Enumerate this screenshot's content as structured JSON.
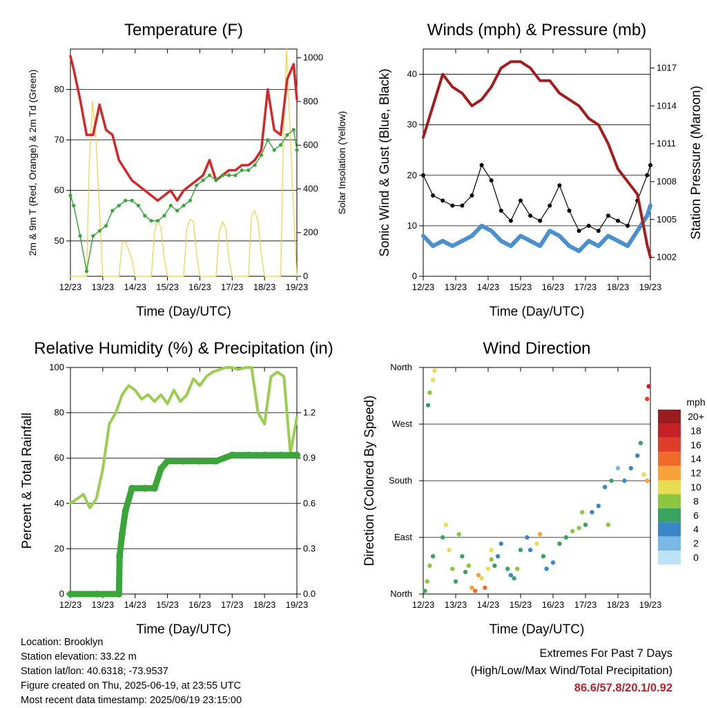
{
  "x_ticks": [
    "12/23",
    "13/23",
    "14/23",
    "15/23",
    "16/23",
    "17/23",
    "18/23",
    "19/23"
  ],
  "colors": {
    "temp_red": "#d62728",
    "temp_orange": "#f39c12",
    "dewpoint_green": "#3aa63a",
    "solar_yellow": "#f2d13a",
    "wind_blue": "#4a90cf",
    "gust_black": "#000000",
    "pressure_maroon": "#a61c1c",
    "rh_green": "#9acd50",
    "precip_green": "#3aa63a"
  },
  "chart_data": [
    {
      "type": "line",
      "title": "Temperature (F)",
      "xlabel": "Time (Day/UTC)",
      "ylabel": "2m & 9m T (Red, Orange) & 2m Td (Green)",
      "y2label": "Solar Insolation (Yellow)",
      "ylim": [
        43,
        88
      ],
      "yticks": [
        50,
        60,
        70,
        80
      ],
      "y2lim": [
        0,
        1040
      ],
      "y2ticks": [
        0,
        200,
        400,
        600,
        800,
        1000
      ],
      "grid": true,
      "series": [
        {
          "role": "temperature",
          "color": "#d62728",
          "x": [
            0,
            0.1,
            0.3,
            0.5,
            0.7,
            0.9,
            1.1,
            1.3,
            1.5,
            1.7,
            1.9,
            2.1,
            2.3,
            2.5,
            2.7,
            2.9,
            3.1,
            3.3,
            3.5,
            3.7,
            3.9,
            4.1,
            4.3,
            4.5,
            4.7,
            4.9,
            5.1,
            5.3,
            5.5,
            5.7,
            5.9,
            6.1,
            6.3,
            6.5,
            6.7,
            6.9,
            7.0
          ],
          "y": [
            86.6,
            84,
            78,
            71,
            71,
            77,
            72,
            71,
            66,
            64,
            62,
            61,
            60,
            59,
            58,
            59,
            60,
            58,
            60,
            61,
            62,
            63,
            66,
            62,
            63,
            64,
            64,
            65,
            65,
            66,
            68,
            80,
            72,
            71,
            82,
            85,
            78
          ]
        },
        {
          "role": "dewpoint",
          "color": "#3aa63a",
          "x": [
            0,
            0.1,
            0.3,
            0.5,
            0.7,
            0.9,
            1.1,
            1.3,
            1.5,
            1.7,
            1.9,
            2.1,
            2.3,
            2.5,
            2.7,
            2.9,
            3.1,
            3.3,
            3.5,
            3.7,
            3.9,
            4.1,
            4.3,
            4.5,
            4.7,
            4.9,
            5.1,
            5.3,
            5.5,
            5.7,
            5.9,
            6.1,
            6.3,
            6.5,
            6.7,
            6.9,
            7.0
          ],
          "y": [
            59,
            57,
            51,
            44,
            51,
            52,
            53,
            56,
            57,
            58,
            58,
            57,
            55,
            54,
            54,
            55,
            57,
            56,
            57,
            58,
            61,
            62,
            63,
            62,
            63,
            63,
            63,
            64,
            64,
            65,
            67,
            70,
            68,
            69,
            71,
            72,
            68
          ]
        },
        {
          "role": "solar",
          "color": "#f2d13a",
          "x": [
            0,
            0.5,
            0.58,
            0.68,
            0.78,
            0.9,
            1.0,
            1.5,
            1.6,
            1.7,
            1.8,
            1.9,
            2.0,
            2.5,
            2.6,
            2.7,
            2.8,
            2.9,
            3.0,
            3.5,
            3.6,
            3.7,
            3.8,
            3.9,
            4.0,
            4.5,
            4.6,
            4.7,
            4.8,
            4.9,
            5.0,
            5.5,
            5.6,
            5.7,
            5.8,
            5.9,
            6.0,
            6.5,
            6.58,
            6.68,
            6.78,
            6.9,
            7.0
          ],
          "y": [
            0,
            0,
            500,
            800,
            650,
            300,
            0,
            0,
            150,
            160,
            120,
            80,
            0,
            0,
            200,
            260,
            220,
            80,
            0,
            0,
            220,
            260,
            250,
            100,
            0,
            0,
            200,
            250,
            220,
            80,
            0,
            0,
            280,
            300,
            250,
            100,
            0,
            0,
            600,
            1040,
            700,
            300,
            0
          ]
        }
      ]
    },
    {
      "type": "line",
      "title": "Winds (mph) & Pressure (mb)",
      "xlabel": "Time (Day/UTC)",
      "ylabel": "Sonic Wind & Gust (Blue, Black)",
      "y2label": "Station Pressure (Maroon)",
      "ylim": [
        0,
        45
      ],
      "yticks": [
        0,
        10,
        20,
        30,
        40
      ],
      "y2lim": [
        1000.5,
        1018.5
      ],
      "y2ticks": [
        1002,
        1005,
        1008,
        1011,
        1014,
        1017
      ],
      "grid": true,
      "series": [
        {
          "role": "wind",
          "color": "#4a90cf",
          "x": [
            0,
            0.3,
            0.6,
            0.9,
            1.2,
            1.5,
            1.8,
            2.1,
            2.4,
            2.7,
            3.0,
            3.3,
            3.6,
            3.9,
            4.2,
            4.5,
            4.8,
            5.1,
            5.4,
            5.7,
            6.0,
            6.3,
            6.6,
            6.9,
            7.0
          ],
          "y": [
            8,
            6,
            7,
            6,
            7,
            8,
            10,
            9,
            7,
            6,
            8,
            7,
            6,
            9,
            8,
            6,
            5,
            7,
            6,
            8,
            7,
            6,
            9,
            12,
            14
          ]
        },
        {
          "role": "gust",
          "color": "#000000",
          "x": [
            0,
            0.3,
            0.6,
            0.9,
            1.2,
            1.5,
            1.8,
            2.1,
            2.4,
            2.7,
            3.0,
            3.3,
            3.6,
            3.9,
            4.2,
            4.5,
            4.8,
            5.1,
            5.4,
            5.7,
            6.0,
            6.3,
            6.6,
            6.9,
            7.0
          ],
          "y": [
            20,
            16,
            15,
            14,
            14,
            16,
            22,
            19,
            13,
            11,
            15,
            12,
            11,
            14,
            18,
            13,
            9,
            10,
            9,
            12,
            11,
            10,
            15,
            20,
            22
          ]
        },
        {
          "role": "pressure",
          "color": "#a61c1c",
          "x": [
            0,
            0.3,
            0.6,
            0.9,
            1.2,
            1.5,
            1.8,
            2.1,
            2.4,
            2.7,
            3.0,
            3.3,
            3.6,
            3.9,
            4.2,
            4.5,
            4.8,
            5.1,
            5.4,
            5.7,
            6.0,
            6.3,
            6.6,
            6.9,
            7.0
          ],
          "y": [
            1011.5,
            1014,
            1016.5,
            1015.5,
            1015,
            1014,
            1014.5,
            1015.5,
            1017,
            1017.5,
            1017.5,
            1017,
            1016,
            1016,
            1015,
            1014.5,
            1014,
            1013,
            1012.5,
            1011,
            1009,
            1008,
            1007,
            1003,
            1002
          ]
        }
      ]
    },
    {
      "type": "area",
      "title": "Relative Humidity (%) & Precipitation (in)",
      "xlabel": "Time (Day/UTC)",
      "ylabel": "Percent & Total Rainfall",
      "ylim": [
        0,
        100
      ],
      "yticks": [
        0,
        20,
        40,
        60,
        80,
        100
      ],
      "y2lim": [
        0,
        1.5
      ],
      "y2ticks": [
        "0.0",
        "0.3",
        "0.6",
        "0.9",
        "1.2"
      ],
      "grid": true,
      "series": [
        {
          "role": "relative_humidity",
          "color": "#9acd50",
          "x": [
            0,
            0.2,
            0.4,
            0.6,
            0.8,
            1.0,
            1.2,
            1.4,
            1.6,
            1.8,
            2.0,
            2.2,
            2.4,
            2.6,
            2.8,
            3.0,
            3.2,
            3.4,
            3.6,
            3.8,
            4.0,
            4.2,
            4.4,
            4.6,
            4.8,
            5.0,
            5.2,
            5.4,
            5.6,
            5.8,
            6.0,
            6.2,
            6.4,
            6.6,
            6.8,
            7.0
          ],
          "y": [
            40,
            42,
            44,
            38,
            42,
            55,
            75,
            80,
            88,
            92,
            90,
            86,
            88,
            85,
            88,
            84,
            90,
            85,
            88,
            95,
            92,
            96,
            98,
            99,
            100,
            100,
            99,
            100,
            100,
            80,
            75,
            96,
            98,
            96,
            62,
            78
          ]
        },
        {
          "role": "total_precipitation",
          "color": "#3aa63a",
          "x": [
            0,
            0.8,
            1.5,
            1.52,
            1.6,
            1.7,
            1.9,
            2.3,
            2.6,
            2.8,
            3.0,
            3.5,
            4.0,
            4.5,
            5.0,
            5.5,
            6.0,
            6.5,
            7.0
          ],
          "y": [
            0,
            0,
            0,
            0.25,
            0.4,
            0.55,
            0.7,
            0.7,
            0.7,
            0.83,
            0.88,
            0.88,
            0.88,
            0.88,
            0.92,
            0.92,
            0.92,
            0.92,
            0.92
          ]
        }
      ]
    },
    {
      "type": "scatter",
      "title": "Wind Direction",
      "xlabel": "Time (Day/UTC)",
      "ylabel": "Direction (Colored By Speed)",
      "yticks": [
        "North",
        "East",
        "South",
        "West",
        "North"
      ],
      "ylim": [
        0,
        360
      ],
      "legend": {
        "title": "mph",
        "labels": [
          "20+",
          "18",
          "16",
          "14",
          "12",
          "10",
          "8",
          "6",
          "4",
          "2",
          "0"
        ],
        "colors": [
          "#9b1c20",
          "#c72127",
          "#e03c2a",
          "#f26a2b",
          "#f9a23a",
          "#e8dc53",
          "#8cc63f",
          "#3aa35f",
          "#3a86c6",
          "#7ab8e6",
          "#bde1f7"
        ],
        "position": "right"
      },
      "points": [
        [
          0.05,
          5,
          6
        ],
        [
          0.12,
          20,
          8
        ],
        [
          0.2,
          45,
          8
        ],
        [
          0.3,
          60,
          6
        ],
        [
          0.15,
          300,
          5
        ],
        [
          0.2,
          320,
          7
        ],
        [
          0.3,
          340,
          10
        ],
        [
          0.35,
          355,
          9
        ],
        [
          0.6,
          90,
          6
        ],
        [
          0.7,
          110,
          9
        ],
        [
          0.8,
          70,
          10
        ],
        [
          0.9,
          40,
          8
        ],
        [
          1.0,
          20,
          5
        ],
        [
          1.1,
          95,
          8
        ],
        [
          1.2,
          60,
          6
        ],
        [
          1.3,
          35,
          6
        ],
        [
          1.5,
          10,
          12
        ],
        [
          1.6,
          5,
          14
        ],
        [
          1.7,
          30,
          12
        ],
        [
          1.8,
          25,
          10
        ],
        [
          1.9,
          10,
          14
        ],
        [
          2.0,
          40,
          10
        ],
        [
          2.1,
          55,
          8
        ],
        [
          2.2,
          45,
          6
        ],
        [
          2.3,
          60,
          4
        ],
        [
          2.4,
          80,
          4
        ],
        [
          2.6,
          40,
          6
        ],
        [
          2.7,
          30,
          4
        ],
        [
          2.8,
          25,
          6
        ],
        [
          2.9,
          40,
          8
        ],
        [
          3.0,
          70,
          5
        ],
        [
          3.2,
          90,
          4
        ],
        [
          3.3,
          70,
          4
        ],
        [
          3.5,
          80,
          10
        ],
        [
          3.6,
          95,
          12
        ],
        [
          3.7,
          60,
          6
        ],
        [
          3.8,
          40,
          4
        ],
        [
          4.0,
          50,
          4
        ],
        [
          4.2,
          80,
          6
        ],
        [
          4.4,
          90,
          6
        ],
        [
          4.6,
          100,
          8
        ],
        [
          4.8,
          105,
          8
        ],
        [
          5.0,
          110,
          6
        ],
        [
          5.2,
          130,
          4
        ],
        [
          5.4,
          140,
          4
        ],
        [
          5.6,
          170,
          4
        ],
        [
          5.8,
          180,
          6
        ],
        [
          6.0,
          200,
          2
        ],
        [
          6.2,
          180,
          4
        ],
        [
          6.4,
          200,
          4
        ],
        [
          6.6,
          220,
          4
        ],
        [
          6.7,
          240,
          6
        ],
        [
          6.8,
          190,
          10
        ],
        [
          6.9,
          180,
          12
        ],
        [
          6.95,
          330,
          18
        ],
        [
          6.9,
          310,
          16
        ],
        [
          5.7,
          110,
          8
        ],
        [
          4.9,
          130,
          8
        ],
        [
          2.1,
          70,
          10
        ],
        [
          1.4,
          45,
          8
        ]
      ]
    }
  ],
  "info": {
    "location": "Location: Brooklyn",
    "elevation": "Station elevation: 33.22 m",
    "latlon": "Station lat/lon: 40.6318; -73.9537",
    "created": "Figure created on Thu, 2025-06-19, at 23:55 UTC",
    "recent": "Most recent data timestamp: 2025/06/19 23:15:00"
  },
  "extremes": {
    "line1": "Extremes For Past 7 Days",
    "line2": "(High/Low/Max Wind/Total Precipitation)",
    "values": "86.6/57.8/20.1/0.92"
  }
}
